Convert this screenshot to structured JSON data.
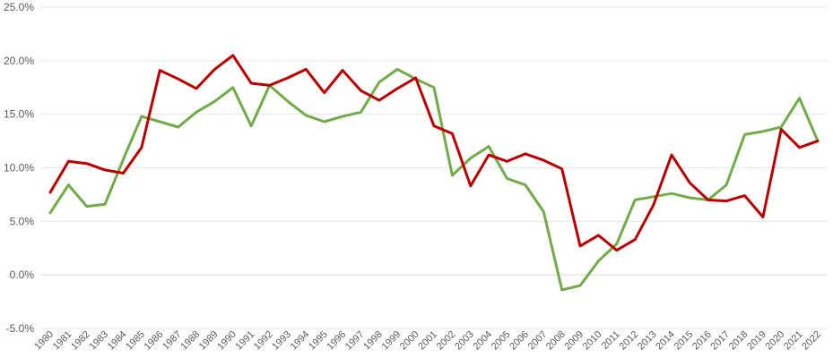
{
  "chart_data": {
    "type": "line",
    "title": "",
    "xlabel": "",
    "ylabel": "",
    "ylim": [
      -5,
      25
    ],
    "yticks": [
      -5,
      0,
      5,
      10,
      15,
      20,
      25
    ],
    "ytick_labels": [
      "-5.0%",
      "0.0%",
      "5.0%",
      "10.0%",
      "15.0%",
      "20.0%",
      "25.0%"
    ],
    "grid": true,
    "legend": "none",
    "x": [
      "1980",
      "1981",
      "1982",
      "1983",
      "1984",
      "1985",
      "1986",
      "1987",
      "1988",
      "1989",
      "1990",
      "1991",
      "1992",
      "1993",
      "1994",
      "1995",
      "1996",
      "1997",
      "1998",
      "1999",
      "2000",
      "2001",
      "2002",
      "2003",
      "2004",
      "2005",
      "2006",
      "2007",
      "2008",
      "2009",
      "2010",
      "2011",
      "2012",
      "2013",
      "2014",
      "2015",
      "2016",
      "2017",
      "2018",
      "2019",
      "2020",
      "2021",
      "2022"
    ],
    "series": [
      {
        "color": "#70ad47",
        "values": [
          5.8,
          8.4,
          6.4,
          6.6,
          10.8,
          14.8,
          14.3,
          13.8,
          15.2,
          16.2,
          17.5,
          13.9,
          17.7,
          16.2,
          14.9,
          14.3,
          14.8,
          15.2,
          18.0,
          19.2,
          18.3,
          17.5,
          9.3,
          10.9,
          12.0,
          9.0,
          8.4,
          5.9,
          -1.4,
          -1.0,
          1.3,
          2.9,
          7.0,
          7.3,
          7.6,
          7.2,
          7.0,
          8.4,
          13.1,
          13.4,
          13.8,
          16.5,
          12.5
        ]
      },
      {
        "color": "#c00000",
        "values": [
          7.7,
          10.6,
          10.4,
          9.8,
          9.5,
          11.9,
          19.1,
          18.3,
          17.4,
          19.2,
          20.5,
          17.9,
          17.7,
          18.4,
          19.2,
          17.0,
          19.1,
          17.2,
          16.3,
          17.4,
          18.4,
          13.9,
          13.2,
          8.3,
          11.2,
          10.6,
          11.3,
          10.7,
          9.9,
          2.7,
          3.7,
          2.3,
          3.3,
          6.5,
          11.2,
          8.6,
          7.0,
          6.9,
          7.4,
          5.4,
          13.6,
          11.9,
          12.5
        ]
      }
    ]
  }
}
